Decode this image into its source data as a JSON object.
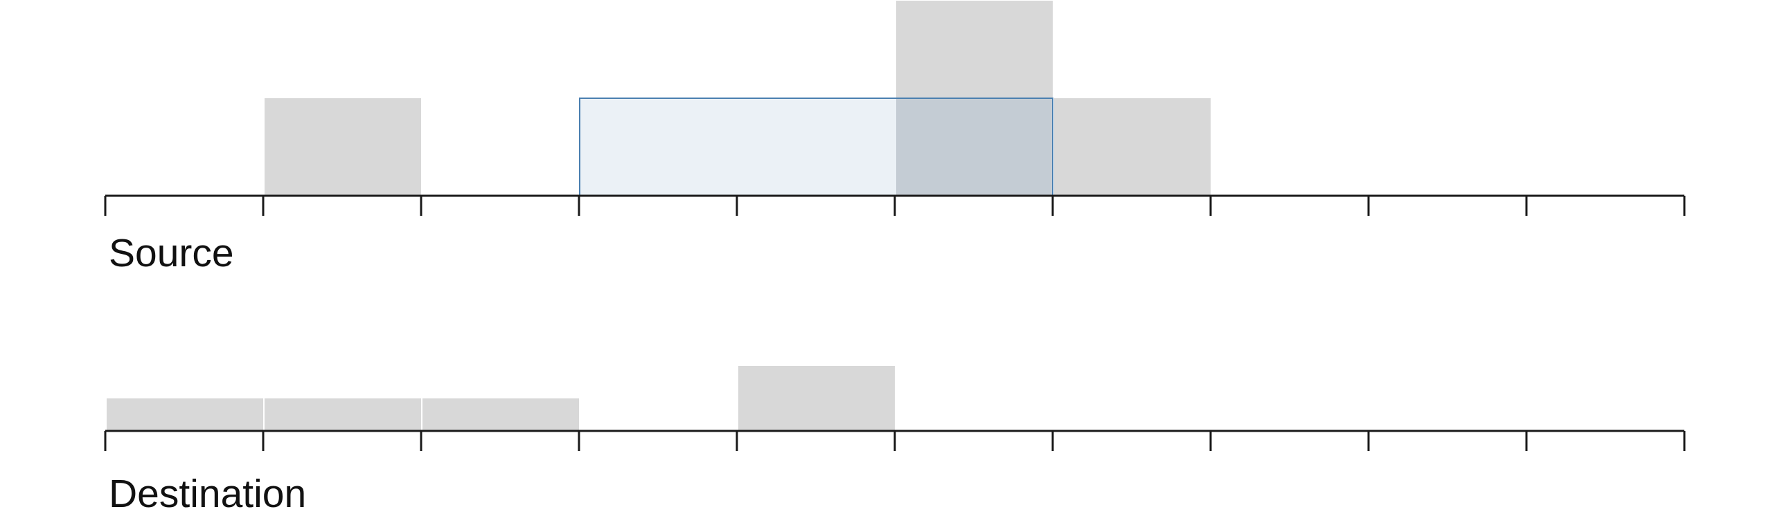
{
  "tracks": [
    {
      "label": "Source",
      "blocks": [
        {
          "start": 1,
          "width": 1,
          "height": 1
        },
        {
          "start": 5,
          "width": 1,
          "height": 2
        },
        {
          "start": 6,
          "width": 1,
          "height": 1
        }
      ],
      "selection": {
        "start": 3,
        "end": 6
      }
    },
    {
      "label": "Destination",
      "blocks": [
        {
          "start": 0,
          "width": 1,
          "height": 1
        },
        {
          "start": 1,
          "width": 1,
          "height": 1
        },
        {
          "start": 2,
          "width": 1,
          "height": 1
        },
        {
          "start": 4,
          "width": 1,
          "height": 2
        }
      ],
      "selection": null
    }
  ],
  "axis": {
    "divisions": 10
  },
  "colors": {
    "block_fill": "#d8d8d8",
    "selection_fill": "#e8eef5",
    "selection_stroke": "#4a7fb0",
    "overlap_fill": "#c4ccd4",
    "axis": "#1a1a1a"
  }
}
